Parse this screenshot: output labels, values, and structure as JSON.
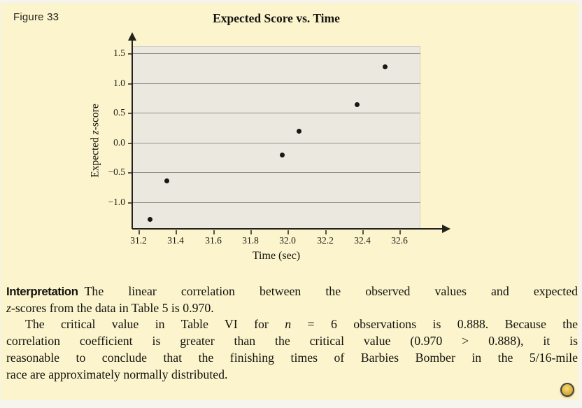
{
  "figure_label": "Figure 33",
  "chart_data": {
    "type": "scatter",
    "title": "Expected Score vs. Time",
    "xlabel": "Time (sec)",
    "ylabel": "Expected z-score",
    "ylabel_segments": [
      {
        "t": "Expected "
      },
      {
        "t": "z",
        "style": "italic"
      },
      {
        "t": "-score"
      }
    ],
    "x": [
      31.26,
      31.35,
      31.97,
      32.06,
      32.37,
      32.52
    ],
    "y": [
      -1.28,
      -0.64,
      -0.2,
      0.2,
      0.64,
      1.28
    ],
    "xtick_values": [
      31.2,
      31.4,
      31.6,
      31.8,
      32.0,
      32.2,
      32.4,
      32.6
    ],
    "xtick_labels": [
      "31.2",
      "31.4",
      "31.6",
      "31.8",
      "32.0",
      "32.2",
      "32.4",
      "32.6"
    ],
    "ytick_values": [
      1.5,
      1.0,
      0.5,
      0.0,
      -0.5,
      -1.0
    ],
    "ytick_labels": [
      "1.5",
      "1.0",
      "0.5",
      "0.0",
      "−0.5",
      "−1.0"
    ],
    "xlim": [
      31.166,
      32.712
    ],
    "ylim": [
      -1.45,
      1.62
    ],
    "grid": "horizontal",
    "legend": "none",
    "colors": {
      "point": "#191813",
      "plot_bg": "#eae8df",
      "gridline": "#93918a",
      "axis": "#23221d"
    }
  },
  "interpretation": {
    "heading": "Interpretation",
    "lines": [
      {
        "just": true,
        "segments": [
          {
            "t": "Interpretation",
            "style": "head"
          },
          {
            "t": "The linear correlation between the observed values and expected"
          }
        ]
      },
      {
        "just": false,
        "segments": [
          {
            "t": "z",
            "style": "italic"
          },
          {
            "t": "-scores from the data in Table 5 is 0.970."
          }
        ]
      },
      {
        "just": true,
        "indent": 27,
        "segments": [
          {
            "t": "The critical value in Table VI for "
          },
          {
            "t": "n",
            "style": "italic"
          },
          {
            "t": " = 6 observations is 0.888. Because the"
          }
        ]
      },
      {
        "just": true,
        "segments": [
          {
            "t": "correlation coefficient is greater than the critical value (0.970 > 0.888), it is"
          }
        ]
      },
      {
        "just": true,
        "segments": [
          {
            "t": "reasonable to conclude that the finishing times of Barbies Bomber in the 5/16-mile"
          }
        ]
      },
      {
        "just": false,
        "segments": [
          {
            "t": "race are approximately normally distributed."
          }
        ]
      }
    ]
  },
  "end_marker": {
    "name": "end-of-example-marker",
    "color": "#ddb13a"
  },
  "colors": {
    "panel_bg": "#fbf4cc",
    "page_bg": "#f5f4ef",
    "ink": "#14130f"
  }
}
